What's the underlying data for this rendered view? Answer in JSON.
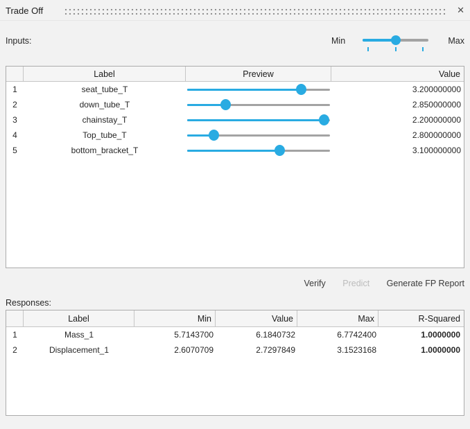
{
  "titlebar": {
    "title": "Trade Off",
    "close_glyph": "✕"
  },
  "inputs_section": {
    "label": "Inputs:",
    "range_slider": {
      "min_label": "Min",
      "max_label": "Max",
      "position_pct": 50
    }
  },
  "inputs_table": {
    "headers": {
      "num": "",
      "label": "Label",
      "preview": "Preview",
      "value": "Value"
    },
    "rows": [
      {
        "num": "1",
        "label": "seat_tube_T",
        "slider_pct": 80,
        "value": "3.200000000"
      },
      {
        "num": "2",
        "label": "down_tube_T",
        "slider_pct": 27,
        "value": "2.850000000"
      },
      {
        "num": "3",
        "label": "chainstay_T",
        "slider_pct": 96,
        "value": "2.200000000"
      },
      {
        "num": "4",
        "label": "Top_tube_T",
        "slider_pct": 19,
        "value": "2.800000000"
      },
      {
        "num": "5",
        "label": "bottom_bracket_T",
        "slider_pct": 65,
        "value": "3.100000000"
      }
    ]
  },
  "actions": {
    "verify_label": "Verify",
    "predict_label": "Predict",
    "generate_label": "Generate FP Report"
  },
  "responses_section": {
    "label": "Responses:"
  },
  "responses_table": {
    "headers": {
      "num": "",
      "label": "Label",
      "min": "Min",
      "value": "Value",
      "max": "Max",
      "r_squared": "R-Squared"
    },
    "rows": [
      {
        "num": "1",
        "label": "Mass_1",
        "min": "5.7143700",
        "value": "6.1840732",
        "max": "6.7742400",
        "r_squared": "1.0000000"
      },
      {
        "num": "2",
        "label": "Displacement_1",
        "min": "2.6070709",
        "value": "2.7297849",
        "max": "3.1523168",
        "r_squared": "1.0000000"
      }
    ]
  },
  "colors": {
    "accent_blue": "#29abe2",
    "track_gray": "#a3a3a3",
    "disabled_text": "#bcbcbc"
  }
}
